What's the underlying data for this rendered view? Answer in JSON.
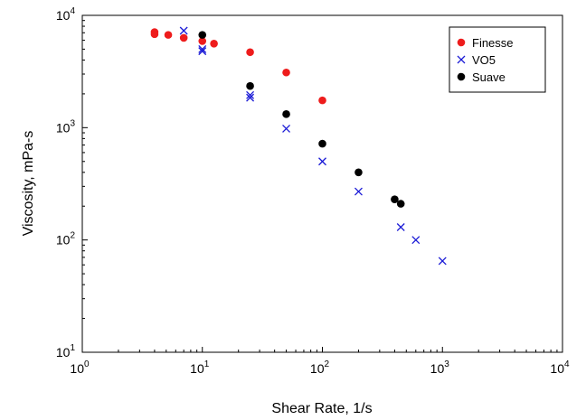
{
  "chart_data": {
    "type": "scatter",
    "title": "",
    "xlabel": "Shear Rate, 1/s",
    "ylabel": "Viscosity, mPa-s",
    "xscale": "log",
    "yscale": "log",
    "xlim": [
      1,
      10000
    ],
    "ylim": [
      10,
      10000
    ],
    "xticks": [
      {
        "base": "10",
        "exp": "0",
        "value": 1
      },
      {
        "base": "10",
        "exp": "1",
        "value": 10
      },
      {
        "base": "10",
        "exp": "2",
        "value": 100
      },
      {
        "base": "10",
        "exp": "3",
        "value": 1000
      },
      {
        "base": "10",
        "exp": "4",
        "value": 10000
      }
    ],
    "yticks": [
      {
        "base": "10",
        "exp": "1",
        "value": 10
      },
      {
        "base": "10",
        "exp": "2",
        "value": 100
      },
      {
        "base": "10",
        "exp": "3",
        "value": 1000
      },
      {
        "base": "10",
        "exp": "4",
        "value": 10000
      }
    ],
    "grid": false,
    "legend_position": "top-right",
    "series": [
      {
        "name": "Finesse",
        "marker": "circle",
        "color": "#ee1c1c",
        "points": [
          {
            "x": 4,
            "y": 7100
          },
          {
            "x": 4,
            "y": 6800
          },
          {
            "x": 5.2,
            "y": 6700
          },
          {
            "x": 7,
            "y": 6300
          },
          {
            "x": 10,
            "y": 5900
          },
          {
            "x": 12.5,
            "y": 5600
          },
          {
            "x": 25,
            "y": 4700
          },
          {
            "x": 50,
            "y": 3100
          },
          {
            "x": 100,
            "y": 1750
          }
        ]
      },
      {
        "name": "VO5",
        "marker": "x",
        "color": "#1a1ad6",
        "points": [
          {
            "x": 7,
            "y": 7300
          },
          {
            "x": 10,
            "y": 5000
          },
          {
            "x": 10,
            "y": 4800
          },
          {
            "x": 25,
            "y": 1950
          },
          {
            "x": 25,
            "y": 1850
          },
          {
            "x": 50,
            "y": 980
          },
          {
            "x": 100,
            "y": 500
          },
          {
            "x": 200,
            "y": 270
          },
          {
            "x": 450,
            "y": 130
          },
          {
            "x": 600,
            "y": 100
          },
          {
            "x": 1000,
            "y": 65
          }
        ]
      },
      {
        "name": "Suave",
        "marker": "circle",
        "color": "#000000",
        "points": [
          {
            "x": 10,
            "y": 6700
          },
          {
            "x": 25,
            "y": 2350
          },
          {
            "x": 50,
            "y": 1320
          },
          {
            "x": 100,
            "y": 720
          },
          {
            "x": 200,
            "y": 400
          },
          {
            "x": 400,
            "y": 230
          },
          {
            "x": 450,
            "y": 210
          }
        ]
      }
    ]
  }
}
